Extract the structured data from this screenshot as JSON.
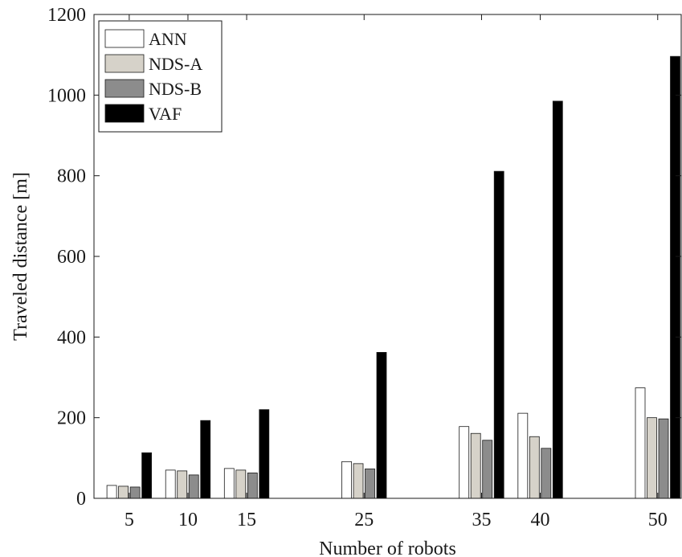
{
  "chart_data": {
    "type": "bar",
    "xlabel": "Number of robots",
    "ylabel": "Traveled distance [m]",
    "x": [
      5,
      10,
      15,
      25,
      35,
      40,
      50
    ],
    "x_tick_labels": [
      "5",
      "10",
      "15",
      "25",
      "35",
      "40",
      "50"
    ],
    "xlim": [
      2,
      52
    ],
    "ylim": [
      0,
      1200
    ],
    "y_ticks": [
      0,
      200,
      400,
      600,
      800,
      1000,
      1200
    ],
    "y_tick_labels": [
      "0",
      "200",
      "400",
      "600",
      "800",
      "1000",
      "1200"
    ],
    "grid": false,
    "legend_position": "top-left",
    "series": [
      {
        "name": "ANN",
        "color": "#ffffff",
        "values": [
          32,
          70,
          74,
          91,
          178,
          211,
          274
        ]
      },
      {
        "name": "NDS-A",
        "color": "#d6d2c9",
        "values": [
          30,
          68,
          70,
          86,
          161,
          153,
          200
        ]
      },
      {
        "name": "NDS-B",
        "color": "#8c8c8c",
        "values": [
          28,
          58,
          63,
          73,
          144,
          124,
          197
        ]
      },
      {
        "name": "VAF",
        "color": "#000000",
        "values": [
          113,
          193,
          220,
          362,
          811,
          985,
          1096
        ]
      }
    ]
  }
}
